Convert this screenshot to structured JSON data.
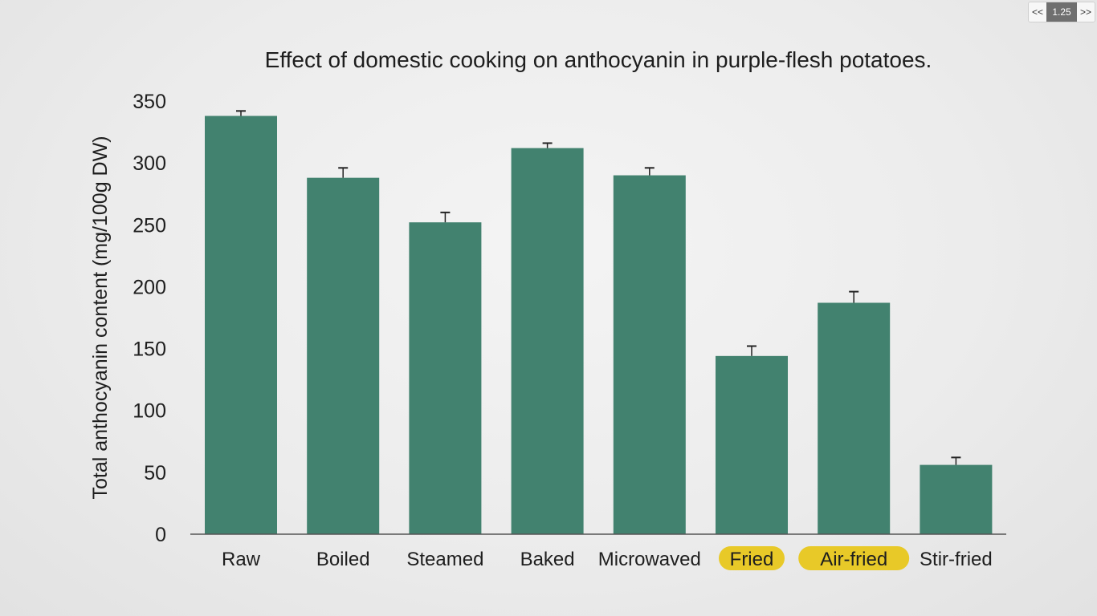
{
  "player": {
    "prev_label": "<<",
    "rate_label": "1.25",
    "next_label": ">>"
  },
  "colors": {
    "bar": "#42826f",
    "highlight": "#e8c928",
    "axis": "#555555",
    "text": "#1e1e1e"
  },
  "chart_data": {
    "type": "bar",
    "title": "Effect of domestic cooking on anthocyanin in purple-flesh potatoes.",
    "xlabel": "",
    "ylabel": "Total anthocyanin content (mg/100g DW)",
    "ylim": [
      0,
      350
    ],
    "yticks": [
      0,
      50,
      100,
      150,
      200,
      250,
      300,
      350
    ],
    "grid": false,
    "categories": [
      "Raw",
      "Boiled",
      "Steamed",
      "Baked",
      "Microwaved",
      "Fried",
      "Air-fried",
      "Stir-fried"
    ],
    "values": [
      338,
      288,
      252,
      312,
      290,
      144,
      187,
      56
    ],
    "error": [
      4,
      8,
      8,
      4,
      6,
      8,
      9,
      6
    ],
    "highlighted_categories": [
      "Fried",
      "Air-fried"
    ]
  }
}
